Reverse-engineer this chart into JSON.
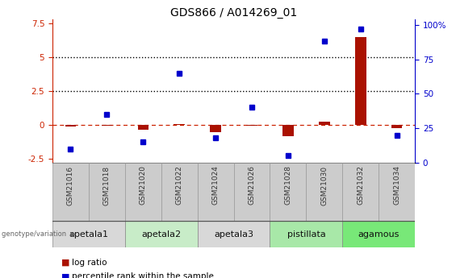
{
  "title": "GDS866 / A014269_01",
  "samples": [
    "GSM21016",
    "GSM21018",
    "GSM21020",
    "GSM21022",
    "GSM21024",
    "GSM21026",
    "GSM21028",
    "GSM21030",
    "GSM21032",
    "GSM21034"
  ],
  "log_ratio": [
    -0.12,
    -0.08,
    -0.38,
    0.05,
    -0.55,
    -0.08,
    -0.85,
    0.25,
    6.5,
    -0.25
  ],
  "percentile_rank_pct": [
    10,
    35,
    15,
    65,
    18,
    40,
    5,
    88,
    97,
    20
  ],
  "ylim_left": [
    -2.8,
    7.8
  ],
  "ylim_right": [
    0,
    104
  ],
  "yticks_left": [
    -2.5,
    0.0,
    2.5,
    5.0,
    7.5
  ],
  "ytick_labels_left": [
    "-2.5",
    "0",
    "2.5",
    "5",
    "7.5"
  ],
  "yticks_right": [
    0,
    25,
    50,
    75,
    100
  ],
  "ytick_labels_right": [
    "0",
    "25",
    "50",
    "75",
    "100%"
  ],
  "hlines": [
    0.0,
    2.5,
    5.0
  ],
  "hline_styles": [
    "dashed",
    "dotted",
    "dotted"
  ],
  "hline_colors": [
    "#cc2200",
    "black",
    "black"
  ],
  "genotype_groups": [
    {
      "label": "apetala1",
      "start": 0,
      "end": 2,
      "color": "#d8d8d8"
    },
    {
      "label": "apetala2",
      "start": 2,
      "end": 4,
      "color": "#c8ecc8"
    },
    {
      "label": "apetala3",
      "start": 4,
      "end": 6,
      "color": "#d8d8d8"
    },
    {
      "label": "pistillata",
      "start": 6,
      "end": 8,
      "color": "#a8e8a8"
    },
    {
      "label": "agamous",
      "start": 8,
      "end": 10,
      "color": "#78e878"
    }
  ],
  "bar_color": "#aa1100",
  "dot_color": "#0000cc",
  "sample_box_color": "#cccccc",
  "sample_text_color": "#333333",
  "title_fontsize": 10,
  "tick_fontsize": 7.5,
  "sample_fontsize": 6.5,
  "genotype_fontsize": 8,
  "legend_fontsize": 7.5,
  "background_color": "#ffffff",
  "left_axis_color": "#cc2200",
  "right_axis_color": "#0000cc",
  "bar_width": 0.3
}
